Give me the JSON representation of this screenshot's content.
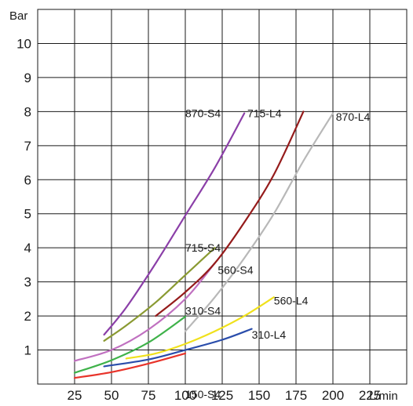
{
  "chart_data": {
    "type": "line",
    "title": "",
    "ylabel": "Bar",
    "xlabel": "L/min",
    "xlim": [
      0,
      250
    ],
    "ylim": [
      0,
      11
    ],
    "xticks": [
      25,
      50,
      75,
      100,
      125,
      150,
      175,
      200,
      225
    ],
    "yticks": [
      1,
      2,
      3,
      4,
      5,
      6,
      7,
      8,
      9,
      10
    ],
    "grid": true,
    "legend": "none",
    "series": [
      {
        "name": "150-S4",
        "color": "#e8332a",
        "x": [
          25,
          50,
          75,
          100
        ],
        "y": [
          0.18,
          0.35,
          0.6,
          0.9
        ],
        "label_at": [
          100,
          -0.3
        ]
      },
      {
        "name": "310-L4",
        "color": "#2a4dab",
        "x": [
          45,
          75,
          100,
          125,
          145
        ],
        "y": [
          0.52,
          0.72,
          1.0,
          1.3,
          1.62
        ],
        "label_at": [
          145,
          1.45
        ]
      },
      {
        "name": "560-L4",
        "color": "#f0e11c",
        "x": [
          60,
          80,
          100,
          120,
          140,
          160
        ],
        "y": [
          0.75,
          0.9,
          1.18,
          1.55,
          2.0,
          2.55
        ],
        "label_at": [
          160,
          2.45
        ]
      },
      {
        "name": "310-S4",
        "color": "#3fb24a",
        "x": [
          25,
          50,
          75,
          100
        ],
        "y": [
          0.33,
          0.7,
          1.22,
          1.98
        ],
        "label_at": [
          100,
          2.15
        ]
      },
      {
        "name": "560-S4",
        "color": "#c070c0",
        "x": [
          25,
          50,
          75,
          100,
          120
        ],
        "y": [
          0.68,
          1.0,
          1.6,
          2.5,
          3.55
        ],
        "label_at": [
          122,
          3.35
        ]
      },
      {
        "name": "715-S4",
        "color": "#8a9a32",
        "x": [
          45,
          60,
          80,
          100,
          120
        ],
        "y": [
          1.27,
          1.72,
          2.4,
          3.2,
          4.0
        ],
        "label_at": [
          100,
          4.0
        ]
      },
      {
        "name": "870-S4",
        "color": "#8b3fa8",
        "x": [
          45,
          60,
          80,
          100,
          120,
          140
        ],
        "y": [
          1.45,
          2.25,
          3.55,
          4.95,
          6.35,
          7.95
        ],
        "label_at": [
          100,
          7.95
        ]
      },
      {
        "name": "715-L4",
        "color": "#951b1b",
        "x": [
          80,
          100,
          120,
          140,
          160,
          180
        ],
        "y": [
          2.0,
          2.7,
          3.55,
          4.75,
          6.15,
          8.0
        ],
        "label_at": [
          142,
          7.95
        ]
      },
      {
        "name": "870-L4",
        "color": "#b8b8b8",
        "x": [
          100,
          120,
          140,
          160,
          180,
          200
        ],
        "y": [
          1.55,
          2.55,
          3.7,
          5.0,
          6.55,
          7.95
        ],
        "label_at": [
          202,
          7.85
        ]
      }
    ]
  }
}
